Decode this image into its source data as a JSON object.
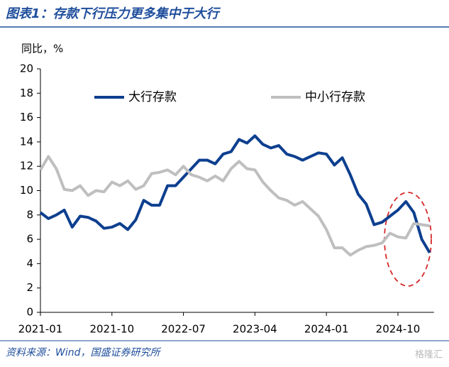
{
  "chart_data": {
    "type": "line",
    "title": "图表1：存款下行压力更多集中于大行",
    "y_label": "同比，%",
    "source": "资料来源：Wind，国盛证券研究所",
    "watermark": "格隆汇",
    "categories": [
      "2021-01",
      null,
      null,
      null,
      null,
      null,
      null,
      null,
      null,
      "2021-10",
      null,
      null,
      null,
      null,
      null,
      null,
      null,
      null,
      "2022-07",
      null,
      null,
      null,
      null,
      null,
      null,
      null,
      null,
      "2023-04",
      null,
      null,
      null,
      null,
      null,
      null,
      null,
      null,
      "2024-01",
      null,
      null,
      null,
      null,
      null,
      null,
      null,
      null,
      "2024-10",
      null,
      null,
      null,
      null
    ],
    "series": [
      {
        "name": "大行存款",
        "color": "#0d3f8f",
        "values": [
          8.2,
          7.7,
          8.0,
          8.4,
          7.0,
          7.9,
          7.8,
          7.5,
          6.9,
          7.0,
          7.3,
          6.8,
          7.6,
          9.2,
          8.8,
          8.8,
          10.4,
          10.4,
          11.1,
          11.8,
          12.5,
          12.5,
          12.2,
          13.0,
          13.2,
          14.2,
          13.9,
          14.5,
          13.8,
          13.5,
          13.7,
          13.0,
          12.8,
          12.5,
          12.8,
          13.1,
          13.0,
          12.1,
          12.7,
          11.3,
          9.7,
          8.9,
          7.2,
          7.4,
          7.9,
          8.4,
          9.1,
          8.2,
          6.0,
          4.9
        ]
      },
      {
        "name": "中小行存款",
        "color": "#bfbfbf",
        "values": [
          11.7,
          12.8,
          11.8,
          10.1,
          10.0,
          10.4,
          9.6,
          10.0,
          9.9,
          10.7,
          10.4,
          10.8,
          10.1,
          10.4,
          11.4,
          11.5,
          11.7,
          11.3,
          12.0,
          11.3,
          11.1,
          10.8,
          11.2,
          10.8,
          11.8,
          12.4,
          11.8,
          11.7,
          10.7,
          10.0,
          9.4,
          9.2,
          8.8,
          9.1,
          8.5,
          7.9,
          6.8,
          5.3,
          5.3,
          4.7,
          5.1,
          5.4,
          5.5,
          5.7,
          6.5,
          6.2,
          6.1,
          7.3,
          7.2,
          7.1
        ]
      }
    ],
    "ylim": [
      0,
      20
    ],
    "yticks": [
      0,
      2,
      4,
      6,
      8,
      10,
      12,
      14,
      16,
      18,
      20
    ]
  }
}
